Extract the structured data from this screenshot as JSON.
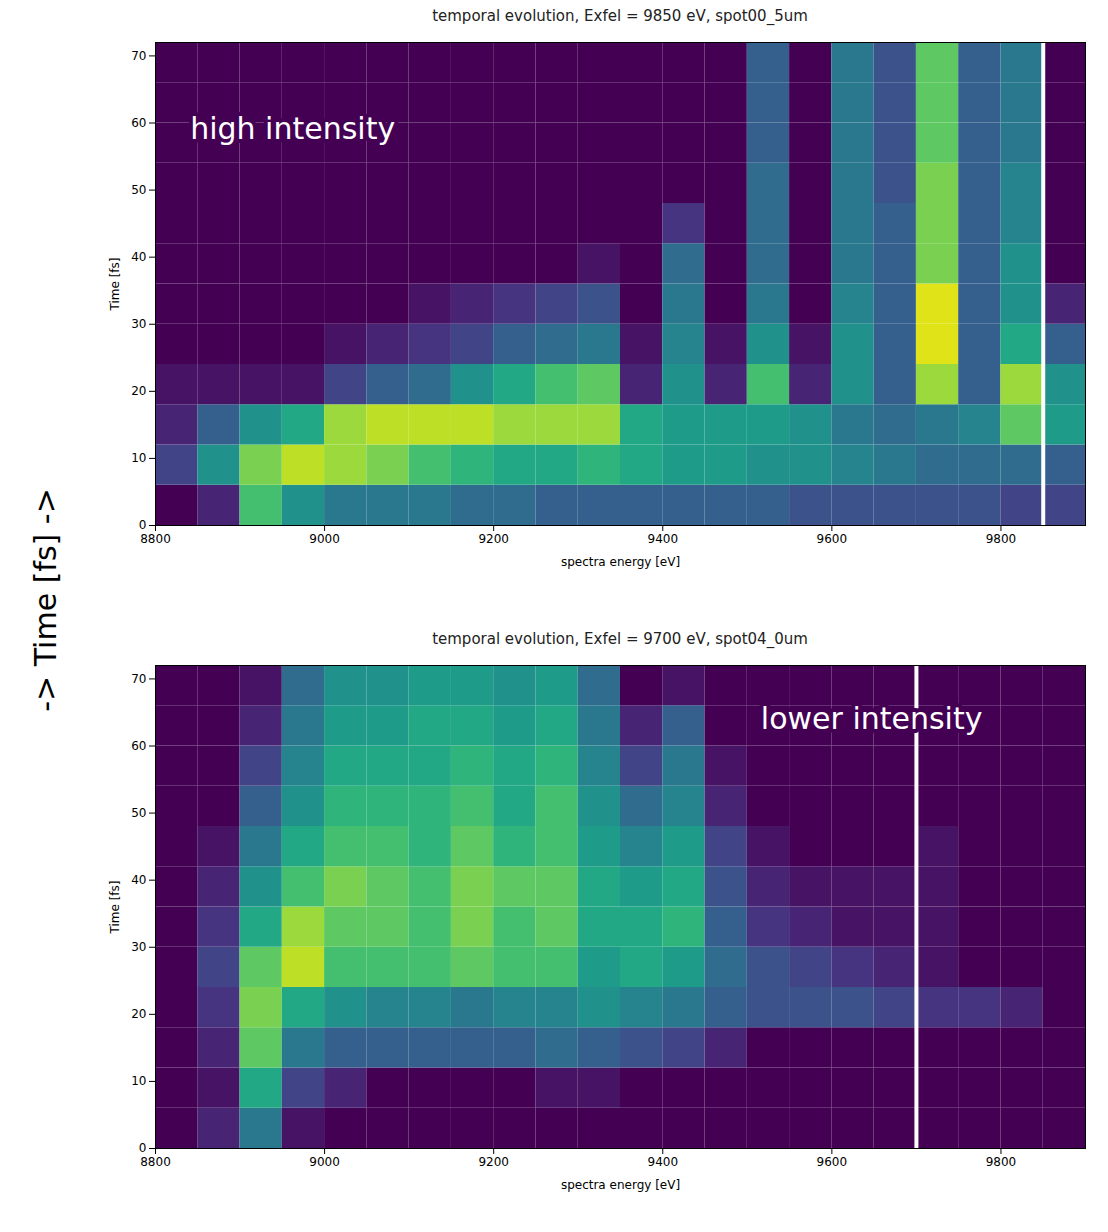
{
  "page_label": "-> Time [fs] ->",
  "chart_data": [
    {
      "type": "heatmap",
      "title": "temporal evolution, Exfel = 9850 eV, spot00_5um",
      "annotation": "high intensity",
      "xlabel": "spectra energy [eV]",
      "ylabel": "Time [fs]",
      "xlim": [
        8800,
        9900
      ],
      "ylim": [
        0,
        72
      ],
      "xticks": [
        8800,
        9000,
        9200,
        9400,
        9600,
        9800
      ],
      "yticks": [
        0,
        10,
        20,
        30,
        40,
        50,
        60,
        70
      ],
      "color": "viridis",
      "zlim": [
        0,
        1
      ],
      "vline": 9850,
      "cells": {
        "x_edges": [
          8800,
          8850,
          8900,
          8950,
          9000,
          9050,
          9100,
          9150,
          9200,
          9250,
          9300,
          9350,
          9400,
          9450,
          9500,
          9550,
          9600,
          9650,
          9700,
          9750,
          9800,
          9850,
          9900
        ],
        "y_edges": [
          0,
          6,
          12,
          18,
          24,
          30,
          36,
          42,
          48,
          54,
          60,
          66,
          72
        ],
        "z": [
          [
            0,
            0.1,
            0.7,
            0.5,
            0.4,
            0.4,
            0.4,
            0.35,
            0.35,
            0.3,
            0.3,
            0.3,
            0.3,
            0.3,
            0.3,
            0.25,
            0.25,
            0.25,
            0.25,
            0.25,
            0.2,
            0.2
          ],
          [
            0.2,
            0.5,
            0.8,
            0.9,
            0.85,
            0.8,
            0.7,
            0.65,
            0.6,
            0.6,
            0.65,
            0.6,
            0.55,
            0.55,
            0.5,
            0.5,
            0.45,
            0.4,
            0.35,
            0.35,
            0.35,
            0.3
          ],
          [
            0.1,
            0.3,
            0.5,
            0.6,
            0.85,
            0.9,
            0.9,
            0.9,
            0.85,
            0.85,
            0.85,
            0.6,
            0.55,
            0.55,
            0.55,
            0.5,
            0.4,
            0.35,
            0.4,
            0.45,
            0.75,
            0.55
          ],
          [
            0.05,
            0.05,
            0.05,
            0.05,
            0.2,
            0.3,
            0.35,
            0.5,
            0.6,
            0.7,
            0.75,
            0.1,
            0.5,
            0.1,
            0.7,
            0.1,
            0.5,
            0.3,
            0.85,
            0.3,
            0.85,
            0.5
          ],
          [
            0,
            0,
            0,
            0,
            0.05,
            0.1,
            0.15,
            0.2,
            0.3,
            0.35,
            0.4,
            0.05,
            0.45,
            0.05,
            0.5,
            0.05,
            0.5,
            0.3,
            0.95,
            0.3,
            0.6,
            0.3
          ],
          [
            0,
            0,
            0,
            0,
            0,
            0,
            0.05,
            0.1,
            0.15,
            0.2,
            0.25,
            0,
            0.4,
            0,
            0.4,
            0,
            0.45,
            0.3,
            0.95,
            0.3,
            0.5,
            0.1
          ],
          [
            0,
            0,
            0,
            0,
            0,
            0,
            0,
            0,
            0,
            0,
            0.05,
            0,
            0.35,
            0,
            0.35,
            0,
            0.4,
            0.3,
            0.8,
            0.3,
            0.5,
            0
          ],
          [
            0,
            0,
            0,
            0,
            0,
            0,
            0,
            0,
            0,
            0,
            0,
            0,
            0.15,
            0,
            0.35,
            0,
            0.4,
            0.3,
            0.8,
            0.3,
            0.45,
            0
          ],
          [
            0,
            0,
            0,
            0,
            0,
            0,
            0,
            0,
            0,
            0,
            0,
            0,
            0,
            0,
            0.35,
            0,
            0.4,
            0.25,
            0.8,
            0.3,
            0.45,
            0
          ],
          [
            0,
            0,
            0,
            0,
            0,
            0,
            0,
            0,
            0,
            0,
            0,
            0,
            0,
            0,
            0.3,
            0,
            0.4,
            0.25,
            0.75,
            0.3,
            0.4,
            0
          ],
          [
            0,
            0,
            0,
            0,
            0,
            0,
            0,
            0,
            0,
            0,
            0,
            0,
            0,
            0,
            0.3,
            0,
            0.4,
            0.25,
            0.75,
            0.3,
            0.4,
            0
          ],
          [
            0,
            0,
            0,
            0,
            0,
            0,
            0,
            0,
            0,
            0,
            0,
            0,
            0,
            0,
            0.3,
            0,
            0.4,
            0.25,
            0.75,
            0.3,
            0.4,
            0
          ]
        ]
      }
    },
    {
      "type": "heatmap",
      "title": "temporal evolution, Exfel = 9700 eV, spot04_0um",
      "annotation": "lower intensity",
      "xlabel": "spectra energy [eV]",
      "ylabel": "Time [fs]",
      "xlim": [
        8800,
        9900
      ],
      "ylim": [
        0,
        72
      ],
      "xticks": [
        8800,
        9000,
        9200,
        9400,
        9600,
        9800
      ],
      "yticks": [
        0,
        10,
        20,
        30,
        40,
        50,
        60,
        70
      ],
      "color": "viridis",
      "zlim": [
        0,
        1
      ],
      "vline": 9700,
      "cells": {
        "x_edges": [
          8800,
          8850,
          8900,
          8950,
          9000,
          9050,
          9100,
          9150,
          9200,
          9250,
          9300,
          9350,
          9400,
          9450,
          9500,
          9550,
          9600,
          9650,
          9700,
          9750,
          9800,
          9850,
          9900
        ],
        "y_edges": [
          0,
          6,
          12,
          18,
          24,
          30,
          36,
          42,
          48,
          54,
          60,
          66,
          72
        ],
        "z": [
          [
            0,
            0.1,
            0.4,
            0.05,
            0,
            0,
            0,
            0,
            0,
            0,
            0,
            0,
            0,
            0,
            0,
            0,
            0,
            0,
            0,
            0,
            0,
            0
          ],
          [
            0,
            0.05,
            0.6,
            0.2,
            0.1,
            0,
            0,
            0,
            0,
            0.05,
            0.05,
            0,
            0,
            0,
            0,
            0,
            0,
            0,
            0,
            0,
            0,
            0
          ],
          [
            0,
            0.1,
            0.75,
            0.4,
            0.3,
            0.3,
            0.3,
            0.3,
            0.3,
            0.35,
            0.3,
            0.25,
            0.2,
            0.1,
            0,
            0,
            0,
            0,
            0,
            0,
            0,
            0
          ],
          [
            0,
            0.15,
            0.8,
            0.6,
            0.5,
            0.45,
            0.45,
            0.4,
            0.45,
            0.45,
            0.5,
            0.45,
            0.4,
            0.3,
            0.25,
            0.25,
            0.25,
            0.2,
            0.15,
            0.15,
            0.1,
            0
          ],
          [
            0,
            0.2,
            0.75,
            0.9,
            0.7,
            0.7,
            0.7,
            0.75,
            0.7,
            0.7,
            0.55,
            0.6,
            0.55,
            0.35,
            0.25,
            0.2,
            0.15,
            0.1,
            0.05,
            0,
            0,
            0
          ],
          [
            0,
            0.15,
            0.6,
            0.85,
            0.75,
            0.75,
            0.7,
            0.8,
            0.7,
            0.75,
            0.6,
            0.6,
            0.65,
            0.3,
            0.15,
            0.1,
            0.05,
            0.05,
            0.05,
            0,
            0,
            0
          ],
          [
            0,
            0.1,
            0.5,
            0.7,
            0.8,
            0.75,
            0.7,
            0.8,
            0.75,
            0.75,
            0.6,
            0.55,
            0.6,
            0.25,
            0.1,
            0.05,
            0.05,
            0.05,
            0.05,
            0,
            0,
            0
          ],
          [
            0,
            0.05,
            0.4,
            0.6,
            0.7,
            0.7,
            0.65,
            0.75,
            0.65,
            0.7,
            0.55,
            0.45,
            0.55,
            0.2,
            0.05,
            0,
            0,
            0,
            0.05,
            0,
            0,
            0
          ],
          [
            0,
            0,
            0.3,
            0.5,
            0.65,
            0.65,
            0.65,
            0.7,
            0.6,
            0.7,
            0.5,
            0.35,
            0.45,
            0.1,
            0,
            0,
            0,
            0,
            0,
            0,
            0,
            0
          ],
          [
            0,
            0,
            0.2,
            0.45,
            0.6,
            0.6,
            0.6,
            0.65,
            0.6,
            0.65,
            0.45,
            0.2,
            0.4,
            0.05,
            0,
            0,
            0,
            0,
            0,
            0,
            0,
            0
          ],
          [
            0,
            0,
            0.1,
            0.4,
            0.55,
            0.55,
            0.6,
            0.6,
            0.55,
            0.6,
            0.4,
            0.1,
            0.3,
            0,
            0,
            0,
            0,
            0,
            0,
            0,
            0,
            0
          ],
          [
            0,
            0,
            0.05,
            0.35,
            0.5,
            0.5,
            0.55,
            0.55,
            0.5,
            0.55,
            0.35,
            0,
            0.05,
            0,
            0,
            0,
            0,
            0,
            0,
            0,
            0,
            0
          ]
        ]
      }
    }
  ]
}
